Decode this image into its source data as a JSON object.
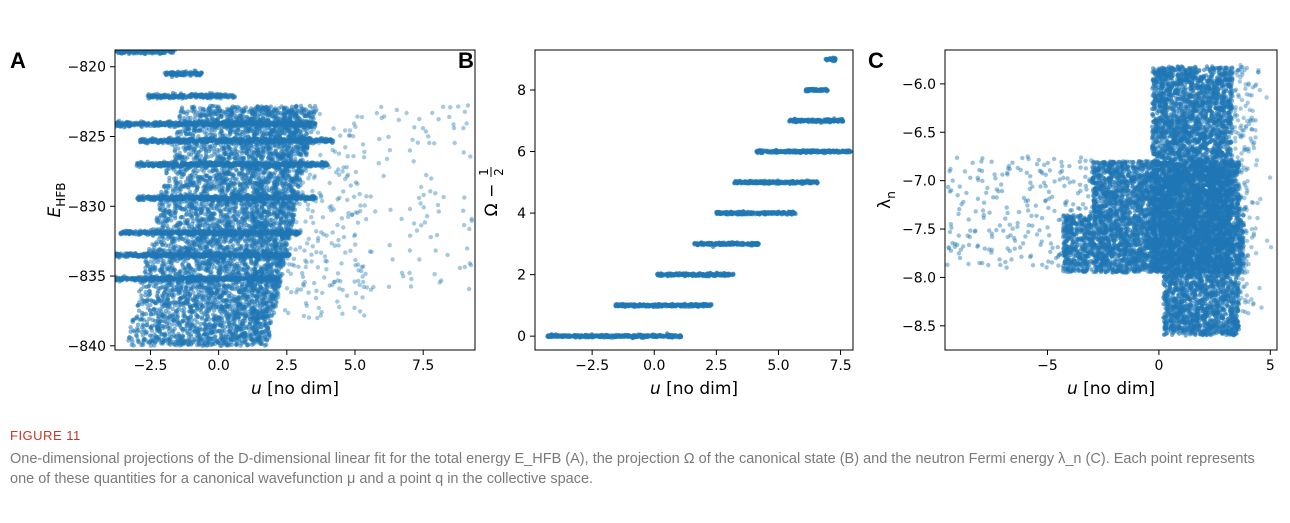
{
  "colors": {
    "points": "#1f77b4",
    "axis": "#000000",
    "caption_label": "#c0392b",
    "caption_text": "#7a7a7a"
  },
  "chart_data": [
    {
      "type": "scatter",
      "panel": "A",
      "xlabel": "u [no dim]",
      "ylabel": "E_HFB",
      "xlim": [
        -3.8,
        9.4
      ],
      "ylim": [
        -840.3,
        -818.8
      ],
      "xticks": [
        "-2.5",
        "0.0",
        "2.5",
        "5.0",
        "7.5"
      ],
      "xtick_values": [
        -2.5,
        0,
        2.5,
        5,
        7.5
      ],
      "yticks": [
        "-820",
        "-825",
        "-830",
        "-835",
        "-840"
      ],
      "ytick_values": [
        -820,
        -825,
        -830,
        -835,
        -840
      ],
      "grid": false,
      "bands": [
        {
          "y": -818.9,
          "x0": -3.8,
          "x1": -1.6
        },
        {
          "y": -820.5,
          "x0": -2.0,
          "x1": -0.6
        },
        {
          "y": -822.1,
          "x0": -2.6,
          "x1": 0.6
        },
        {
          "y": -824.1,
          "x0": -3.8,
          "x1": 3.6
        },
        {
          "y": -825.3,
          "x0": -3.0,
          "x1": 4.2
        },
        {
          "y": -827.0,
          "x0": -3.0,
          "x1": 4.0
        },
        {
          "y": -829.4,
          "x0": -3.0,
          "x1": 3.6
        },
        {
          "y": -831.9,
          "x0": -3.6,
          "x1": 3.0
        },
        {
          "y": -833.5,
          "x0": -3.8,
          "x1": 2.6
        },
        {
          "y": -835.2,
          "x0": -3.8,
          "x1": 2.2
        }
      ],
      "cloud": {
        "y_top": -822.8,
        "y_bottom": -840.0,
        "x_left_top": -1.4,
        "x_left_bottom": -3.4,
        "x_right_top": 3.6,
        "x_right_bottom": 1.8
      },
      "outliers_x": [
        5.0,
        9.3
      ],
      "outliers_y": [
        -835.5,
        -822.8
      ]
    },
    {
      "type": "scatter",
      "panel": "B",
      "xlabel": "u [no dim]",
      "ylabel": "Ω − 1/2",
      "xlim": [
        -4.8,
        8.0
      ],
      "ylim": [
        -0.45,
        9.3
      ],
      "xticks": [
        "-2.5",
        "0.0",
        "2.5",
        "5.0",
        "7.5"
      ],
      "xtick_values": [
        -2.5,
        0,
        2.5,
        5,
        7.5
      ],
      "yticks": [
        "0",
        "2",
        "4",
        "6",
        "8"
      ],
      "ytick_values": [
        0,
        2,
        4,
        6,
        8
      ],
      "grid": false,
      "levels": [
        {
          "y": 0,
          "x0": -4.3,
          "x1": 1.1
        },
        {
          "y": 1,
          "x0": -1.6,
          "x1": 2.3
        },
        {
          "y": 2,
          "x0": 0.1,
          "x1": 3.2
        },
        {
          "y": 3,
          "x0": 1.6,
          "x1": 4.2
        },
        {
          "y": 4,
          "x0": 2.5,
          "x1": 5.7
        },
        {
          "y": 5,
          "x0": 3.2,
          "x1": 6.6
        },
        {
          "y": 6,
          "x0": 4.1,
          "x1": 7.9
        },
        {
          "y": 7,
          "x0": 5.4,
          "x1": 7.6
        },
        {
          "y": 8,
          "x0": 6.1,
          "x1": 7.0
        },
        {
          "y": 9,
          "x0": 6.9,
          "x1": 7.3
        }
      ]
    },
    {
      "type": "scatter",
      "panel": "C",
      "xlabel": "u [no dim]",
      "ylabel": "λ_n",
      "xlim": [
        -9.6,
        5.3
      ],
      "ylim": [
        -8.75,
        -5.65
      ],
      "xticks": [
        "-5",
        "0",
        "5"
      ],
      "xtick_values": [
        -5,
        0,
        5
      ],
      "yticks": [
        "-6.0",
        "-6.5",
        "-7.0",
        "-7.5",
        "-8.0",
        "-8.5"
      ],
      "ytick_values": [
        -6.0,
        -6.5,
        -7.0,
        -7.5,
        -8.0,
        -8.5
      ],
      "grid": false,
      "blocks": [
        {
          "x0": -0.3,
          "x1": 3.3,
          "y0": -7.95,
          "y1": -5.82
        },
        {
          "x0": -4.3,
          "x1": 3.8,
          "y0": -7.95,
          "y1": -7.35
        },
        {
          "x0": -3.0,
          "x1": 3.6,
          "y0": -7.35,
          "y1": -6.8
        },
        {
          "x0": 0.2,
          "x1": 3.6,
          "y0": -8.6,
          "y1": -7.95
        }
      ],
      "sparse_region": {
        "x0": -9.5,
        "x1": -2.0,
        "y0": -7.9,
        "y1": -6.75
      }
    }
  ],
  "panel_letters": [
    "A",
    "B",
    "C"
  ],
  "caption": {
    "label": "FIGURE 11",
    "text": "One-dimensional projections of the D-dimensional linear fit for the total energy E_HFB (A), the projection Ω of the canonical state (B) and the neutron Fermi energy λ_n (C). Each point represents one of these quantities for a canonical wavefunction μ and a point q in the collective space."
  }
}
